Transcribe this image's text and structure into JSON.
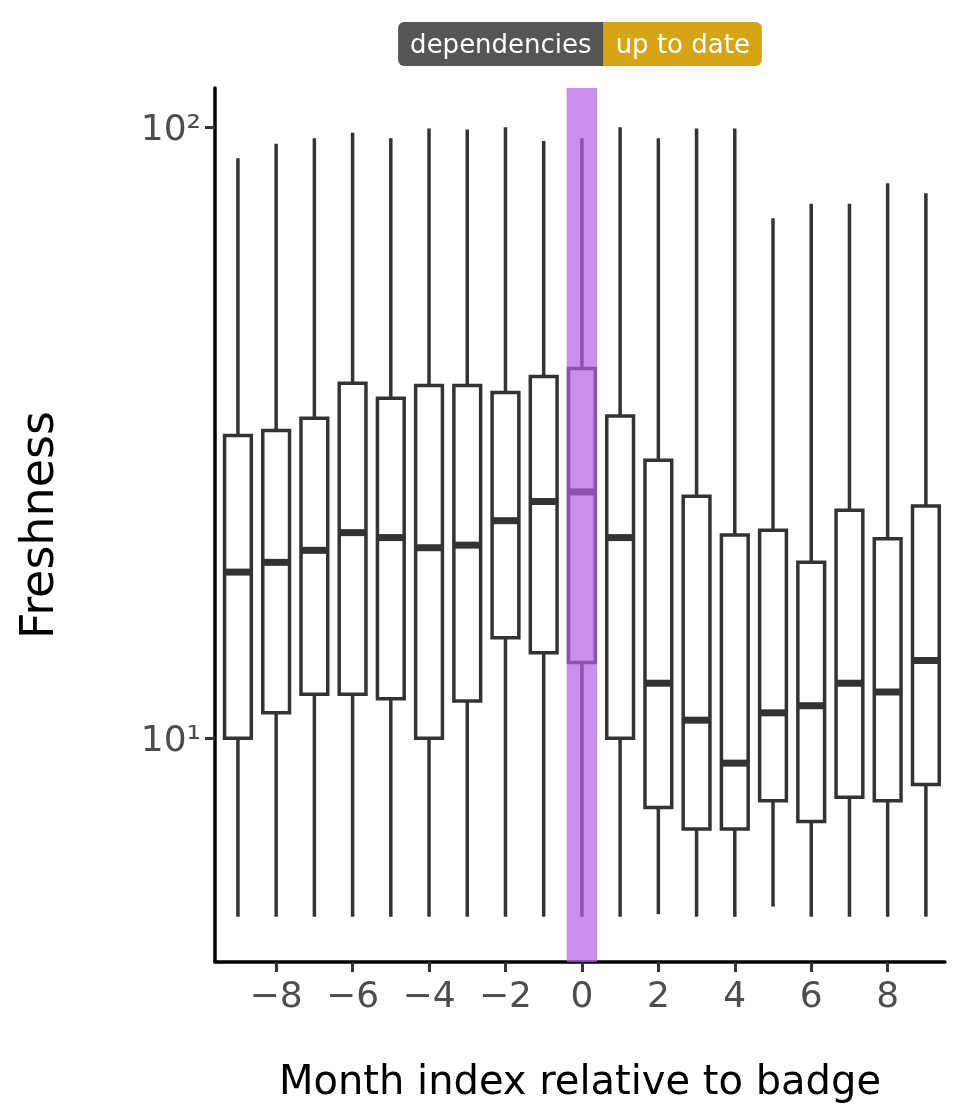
{
  "chart_data": {
    "type": "box",
    "xlabel": "Month index relative to badge",
    "ylabel": "Freshness",
    "annotations": [
      "dependencies",
      "up to date"
    ],
    "log": "y",
    "x": [
      -9,
      -8,
      -7,
      -6,
      -5,
      -4,
      -3,
      -2,
      -1,
      0,
      1,
      2,
      3,
      4,
      5,
      6,
      7,
      8,
      9
    ],
    "boxes": [
      {
        "low": 5.1,
        "q1": 10,
        "median": 18.7,
        "q3": 31.3,
        "high": 89
      },
      {
        "low": 5.1,
        "q1": 11,
        "median": 19.4,
        "q3": 31.9,
        "high": 94
      },
      {
        "low": 5.1,
        "q1": 11.8,
        "median": 20.3,
        "q3": 33.4,
        "high": 96
      },
      {
        "low": 5.1,
        "q1": 11.8,
        "median": 21.7,
        "q3": 38.1,
        "high": 98
      },
      {
        "low": 5.1,
        "q1": 11.6,
        "median": 21.3,
        "q3": 36,
        "high": 96
      },
      {
        "low": 5.1,
        "q1": 10,
        "median": 20.5,
        "q3": 37.8,
        "high": 99.6
      },
      {
        "low": 5.1,
        "q1": 11.5,
        "median": 20.7,
        "q3": 37.8,
        "high": 99.2
      },
      {
        "low": 5.1,
        "q1": 14.6,
        "median": 22.7,
        "q3": 36.8,
        "high": 100
      },
      {
        "low": 5.1,
        "q1": 13.8,
        "median": 24.4,
        "q3": 39.1,
        "high": 95
      },
      {
        "low": 5.1,
        "q1": 13.3,
        "median": 25.3,
        "q3": 40.3,
        "high": 96
      },
      {
        "low": 5.1,
        "q1": 10,
        "median": 21.3,
        "q3": 33.7,
        "high": 100
      },
      {
        "low": 5.15,
        "q1": 7.7,
        "median": 12.3,
        "q3": 28.5,
        "high": 96
      },
      {
        "low": 5.1,
        "q1": 7.1,
        "median": 10.7,
        "q3": 24.9,
        "high": 99.6
      },
      {
        "low": 5.1,
        "q1": 7.1,
        "median": 9.1,
        "q3": 21.5,
        "high": 99.6
      },
      {
        "low": 5.3,
        "q1": 7.9,
        "median": 11,
        "q3": 21.9,
        "high": 71
      },
      {
        "low": 5.1,
        "q1": 7.3,
        "median": 11.3,
        "q3": 19.4,
        "high": 75
      },
      {
        "low": 5.1,
        "q1": 8,
        "median": 12.3,
        "q3": 23.6,
        "high": 75
      },
      {
        "low": 5.1,
        "q1": 7.9,
        "median": 11.9,
        "q3": 21.2,
        "high": 81
      },
      {
        "low": 5.1,
        "q1": 8.4,
        "median": 13.4,
        "q3": 24,
        "high": 78
      }
    ],
    "color": "#333333",
    "bands": [
      {
        "axis": "x",
        "from": -0.4,
        "to": 0.4,
        "color": "#b45ee8"
      }
    ],
    "xlim": [
      -9.6,
      9.5
    ],
    "xticks": [
      {
        "value": -8,
        "label": "−8"
      },
      {
        "value": -6,
        "label": "−6"
      },
      {
        "value": -4,
        "label": "−4"
      },
      {
        "value": -2,
        "label": "−2"
      },
      0,
      2,
      4,
      6,
      8
    ],
    "ylim": [
      4.3,
      116
    ],
    "yticks": [
      {
        "value": 10,
        "label": "10¹"
      },
      {
        "value": 100,
        "label": "10²"
      }
    ],
    "grid": false
  }
}
